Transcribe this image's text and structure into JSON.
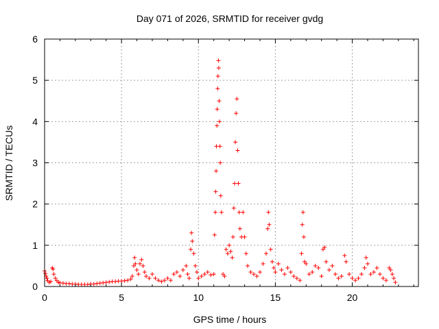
{
  "chart_data": {
    "type": "scatter",
    "title": "Day 071 of 2026, SRMTID for receiver gvdg",
    "xlabel": "GPS time / hours",
    "ylabel": "SRMTID / TECUs",
    "xlim": [
      0,
      24.3
    ],
    "ylim": [
      0,
      6
    ],
    "xticks": [
      0,
      5,
      10,
      15,
      20
    ],
    "yticks": [
      0,
      1,
      2,
      3,
      4,
      5,
      6
    ],
    "grid": true,
    "marker": "plus",
    "color": "#ff0000",
    "series": [
      {
        "name": "SRMTID",
        "points": [
          [
            0.0,
            0.38
          ],
          [
            0.05,
            0.32
          ],
          [
            0.1,
            0.25
          ],
          [
            0.15,
            0.2
          ],
          [
            0.2,
            0.14
          ],
          [
            0.3,
            0.1
          ],
          [
            0.4,
            0.12
          ],
          [
            0.5,
            0.45
          ],
          [
            0.55,
            0.42
          ],
          [
            0.6,
            0.3
          ],
          [
            0.7,
            0.2
          ],
          [
            0.8,
            0.14
          ],
          [
            0.9,
            0.1
          ],
          [
            1.0,
            0.09
          ],
          [
            1.2,
            0.08
          ],
          [
            1.4,
            0.07
          ],
          [
            1.6,
            0.07
          ],
          [
            1.8,
            0.06
          ],
          [
            2.0,
            0.06
          ],
          [
            2.2,
            0.05
          ],
          [
            2.4,
            0.05
          ],
          [
            2.6,
            0.05
          ],
          [
            2.8,
            0.05
          ],
          [
            3.0,
            0.06
          ],
          [
            3.2,
            0.06
          ],
          [
            3.4,
            0.07
          ],
          [
            3.6,
            0.08
          ],
          [
            3.8,
            0.09
          ],
          [
            4.0,
            0.1
          ],
          [
            4.2,
            0.11
          ],
          [
            4.4,
            0.12
          ],
          [
            4.6,
            0.12
          ],
          [
            4.8,
            0.13
          ],
          [
            5.0,
            0.13
          ],
          [
            5.2,
            0.14
          ],
          [
            5.4,
            0.15
          ],
          [
            5.6,
            0.18
          ],
          [
            5.7,
            0.25
          ],
          [
            5.8,
            0.5
          ],
          [
            5.85,
            0.7
          ],
          [
            5.9,
            0.55
          ],
          [
            6.0,
            0.4
          ],
          [
            6.1,
            0.3
          ],
          [
            6.2,
            0.55
          ],
          [
            6.3,
            0.65
          ],
          [
            6.4,
            0.5
          ],
          [
            6.5,
            0.35
          ],
          [
            6.6,
            0.25
          ],
          [
            6.8,
            0.2
          ],
          [
            7.0,
            0.3
          ],
          [
            7.2,
            0.2
          ],
          [
            7.4,
            0.15
          ],
          [
            7.6,
            0.12
          ],
          [
            7.8,
            0.15
          ],
          [
            8.0,
            0.2
          ],
          [
            8.2,
            0.15
          ],
          [
            8.4,
            0.3
          ],
          [
            8.6,
            0.35
          ],
          [
            8.8,
            0.25
          ],
          [
            9.0,
            0.4
          ],
          [
            9.2,
            0.5
          ],
          [
            9.3,
            0.3
          ],
          [
            9.4,
            0.2
          ],
          [
            9.5,
            0.9
          ],
          [
            9.55,
            1.3
          ],
          [
            9.6,
            1.1
          ],
          [
            9.7,
            0.8
          ],
          [
            9.8,
            0.5
          ],
          [
            9.9,
            0.35
          ],
          [
            10.0,
            0.2
          ],
          [
            10.2,
            0.25
          ],
          [
            10.4,
            0.3
          ],
          [
            10.6,
            0.35
          ],
          [
            10.8,
            0.28
          ],
          [
            11.0,
            0.3
          ],
          [
            11.05,
            1.25
          ],
          [
            11.1,
            1.8
          ],
          [
            11.12,
            2.3
          ],
          [
            11.15,
            2.8
          ],
          [
            11.17,
            3.4
          ],
          [
            11.2,
            3.9
          ],
          [
            11.22,
            4.3
          ],
          [
            11.25,
            4.8
          ],
          [
            11.27,
            5.1
          ],
          [
            11.3,
            5.48
          ],
          [
            11.32,
            5.3
          ],
          [
            11.35,
            4.5
          ],
          [
            11.37,
            4.0
          ],
          [
            11.4,
            3.4
          ],
          [
            11.42,
            3.0
          ],
          [
            11.45,
            2.2
          ],
          [
            11.5,
            1.8
          ],
          [
            11.6,
            0.3
          ],
          [
            11.7,
            0.25
          ],
          [
            11.8,
            0.9
          ],
          [
            11.9,
            0.8
          ],
          [
            12.0,
            1.0
          ],
          [
            12.1,
            0.85
          ],
          [
            12.2,
            0.7
          ],
          [
            12.25,
            1.2
          ],
          [
            12.3,
            1.9
          ],
          [
            12.35,
            2.5
          ],
          [
            12.4,
            3.5
          ],
          [
            12.45,
            4.2
          ],
          [
            12.5,
            4.55
          ],
          [
            12.55,
            3.3
          ],
          [
            12.6,
            2.5
          ],
          [
            12.65,
            1.8
          ],
          [
            12.7,
            1.4
          ],
          [
            12.8,
            1.2
          ],
          [
            12.9,
            1.8
          ],
          [
            13.0,
            1.2
          ],
          [
            13.1,
            0.8
          ],
          [
            13.2,
            0.5
          ],
          [
            13.4,
            0.35
          ],
          [
            13.6,
            0.3
          ],
          [
            13.8,
            0.25
          ],
          [
            14.0,
            0.35
          ],
          [
            14.2,
            0.55
          ],
          [
            14.4,
            0.8
          ],
          [
            14.5,
            1.4
          ],
          [
            14.55,
            1.8
          ],
          [
            14.6,
            1.5
          ],
          [
            14.7,
            0.9
          ],
          [
            14.8,
            0.6
          ],
          [
            14.9,
            0.45
          ],
          [
            15.0,
            0.35
          ],
          [
            15.2,
            0.55
          ],
          [
            15.4,
            0.4
          ],
          [
            15.6,
            0.3
          ],
          [
            15.8,
            0.45
          ],
          [
            16.0,
            0.35
          ],
          [
            16.2,
            0.25
          ],
          [
            16.4,
            0.2
          ],
          [
            16.6,
            0.15
          ],
          [
            16.7,
            0.8
          ],
          [
            16.75,
            1.5
          ],
          [
            16.8,
            1.8
          ],
          [
            16.85,
            1.2
          ],
          [
            16.9,
            0.6
          ],
          [
            17.0,
            0.55
          ],
          [
            17.2,
            0.3
          ],
          [
            17.4,
            0.35
          ],
          [
            17.6,
            0.5
          ],
          [
            17.8,
            0.45
          ],
          [
            18.0,
            0.25
          ],
          [
            18.1,
            0.9
          ],
          [
            18.2,
            0.95
          ],
          [
            18.3,
            0.6
          ],
          [
            18.5,
            0.4
          ],
          [
            18.7,
            0.5
          ],
          [
            18.9,
            0.3
          ],
          [
            19.1,
            0.2
          ],
          [
            19.3,
            0.25
          ],
          [
            19.5,
            0.75
          ],
          [
            19.6,
            0.6
          ],
          [
            19.8,
            0.3
          ],
          [
            20.0,
            0.2
          ],
          [
            20.2,
            0.15
          ],
          [
            20.4,
            0.2
          ],
          [
            20.6,
            0.3
          ],
          [
            20.8,
            0.45
          ],
          [
            20.9,
            0.7
          ],
          [
            21.0,
            0.55
          ],
          [
            21.2,
            0.3
          ],
          [
            21.4,
            0.35
          ],
          [
            21.6,
            0.45
          ],
          [
            21.8,
            0.3
          ],
          [
            22.0,
            0.2
          ],
          [
            22.2,
            0.15
          ],
          [
            22.4,
            0.45
          ],
          [
            22.5,
            0.4
          ],
          [
            22.6,
            0.3
          ],
          [
            22.7,
            0.2
          ],
          [
            22.8,
            0.1
          ]
        ]
      }
    ]
  }
}
